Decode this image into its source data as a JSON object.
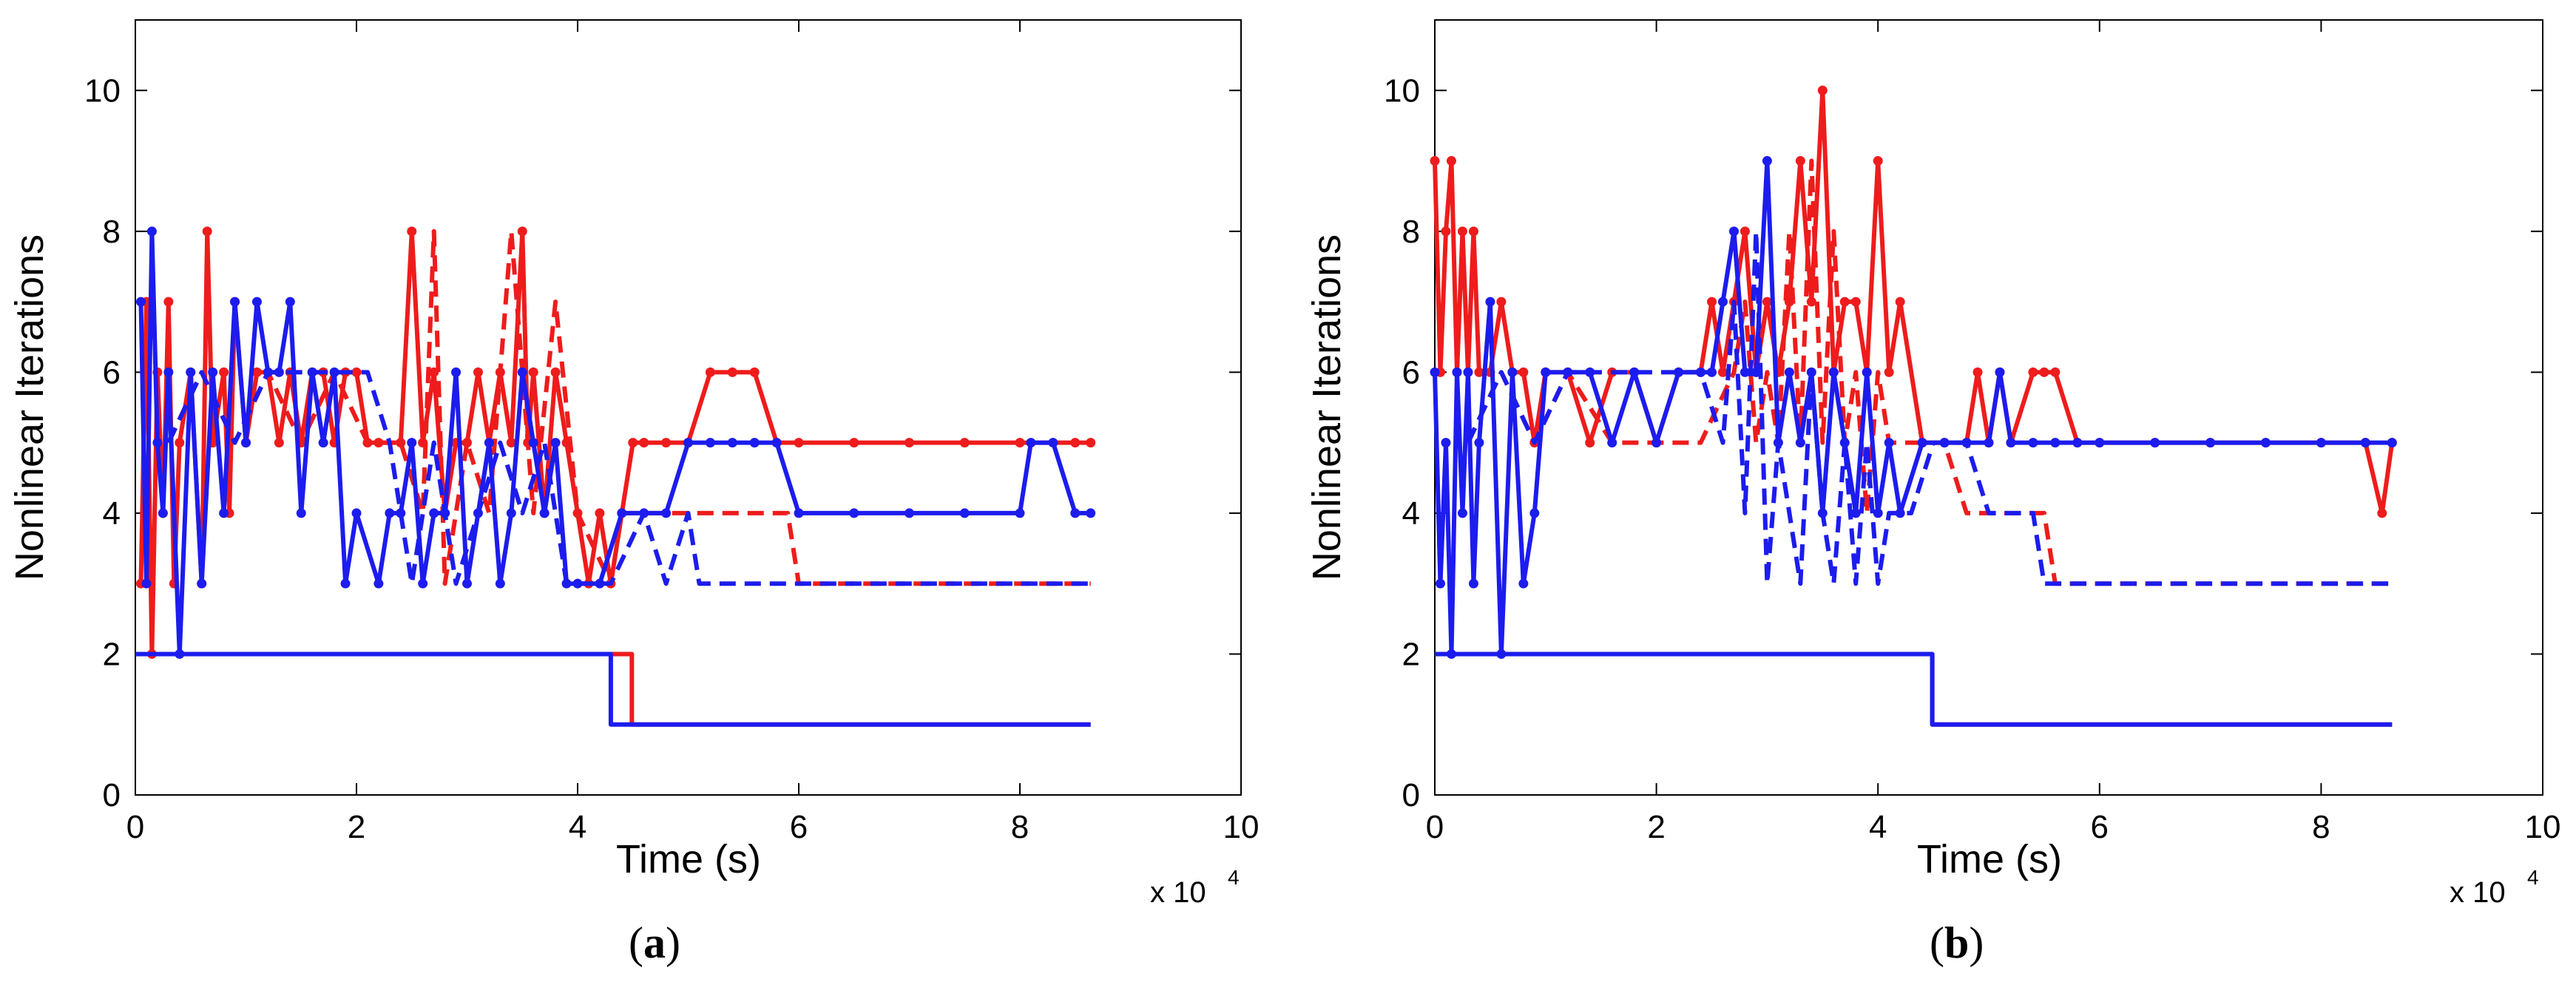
{
  "chart_data": [
    {
      "type": "line",
      "panel_label": "a",
      "xlabel": "Time (s)",
      "ylabel": "Nonlinear Iterations",
      "x_multiplier": "x 10",
      "x_multiplier_exp": "4",
      "xlim": [
        0,
        10
      ],
      "ylim": [
        0,
        11
      ],
      "xticks": [
        0,
        2,
        4,
        6,
        8,
        10
      ],
      "yticks": [
        0,
        2,
        4,
        6,
        8,
        10
      ],
      "series": [
        {
          "name": "red-solid-markers",
          "color": "#ee1c1c",
          "style": "solid",
          "markers": true,
          "x": [
            0.05,
            0.1,
            0.15,
            0.2,
            0.25,
            0.3,
            0.35,
            0.4,
            0.5,
            0.6,
            0.65,
            0.7,
            0.8,
            0.85,
            0.9,
            1.0,
            1.1,
            1.2,
            1.3,
            1.4,
            1.5,
            1.6,
            1.7,
            1.8,
            1.9,
            2.0,
            2.1,
            2.2,
            2.4,
            2.5,
            2.6,
            2.7,
            2.8,
            2.9,
            3.0,
            3.1,
            3.2,
            3.3,
            3.4,
            3.5,
            3.55,
            3.6,
            3.7,
            3.8,
            3.9,
            4.0,
            4.1,
            4.2,
            4.3,
            4.4,
            4.5,
            4.6,
            4.8,
            5.0,
            5.2,
            5.4,
            5.6,
            5.8,
            6.0,
            6.5,
            7.0,
            7.5,
            8.0,
            8.5,
            8.64
          ],
          "y": [
            3,
            7,
            2,
            6,
            4,
            7,
            3,
            5,
            6,
            3,
            8,
            5,
            6,
            4,
            7,
            5,
            6,
            6,
            5,
            6,
            5,
            6,
            6,
            5,
            6,
            6,
            5,
            5,
            5,
            8,
            5,
            6,
            4,
            5,
            5,
            6,
            5,
            6,
            5,
            8,
            5,
            6,
            4,
            6,
            5,
            4,
            3,
            4,
            3,
            4,
            5,
            5,
            5,
            5,
            6,
            6,
            6,
            5,
            5,
            5,
            5,
            5,
            5,
            5,
            5
          ]
        },
        {
          "name": "red-dashed",
          "color": "#ee1c1c",
          "style": "dashed",
          "markers": false,
          "x": [
            0.3,
            0.6,
            0.9,
            1.2,
            1.5,
            1.8,
            2.1,
            2.4,
            2.6,
            2.7,
            2.8,
            2.9,
            3.0,
            3.2,
            3.4,
            3.6,
            3.8,
            4.0,
            4.3,
            4.4,
            4.6,
            4.8,
            5.0,
            5.5,
            5.9,
            6.0,
            7.0,
            8.0,
            8.64
          ],
          "y": [
            5,
            6,
            5,
            6,
            5,
            6,
            5,
            5,
            4,
            8,
            3,
            4,
            5,
            4,
            8,
            4,
            7,
            4,
            3,
            4,
            4,
            4,
            4,
            4,
            4,
            3,
            3,
            3,
            3
          ]
        },
        {
          "name": "red-solid-bottom",
          "color": "#ee1c1c",
          "style": "solid",
          "markers": false,
          "x": [
            0.0,
            1.0,
            2.0,
            3.0,
            4.0,
            4.49,
            4.49,
            8.64
          ],
          "y": [
            2,
            2,
            2,
            2,
            2,
            2,
            1,
            1
          ]
        },
        {
          "name": "blue-solid-markers",
          "color": "#1c1cee",
          "style": "solid",
          "markers": true,
          "x": [
            0.05,
            0.1,
            0.15,
            0.2,
            0.25,
            0.3,
            0.4,
            0.5,
            0.6,
            0.7,
            0.8,
            0.9,
            1.0,
            1.1,
            1.2,
            1.3,
            1.4,
            1.5,
            1.6,
            1.7,
            1.8,
            1.9,
            2.0,
            2.2,
            2.3,
            2.4,
            2.5,
            2.6,
            2.7,
            2.8,
            2.9,
            3.0,
            3.1,
            3.2,
            3.3,
            3.4,
            3.5,
            3.6,
            3.7,
            3.8,
            3.9,
            4.0,
            4.2,
            4.4,
            4.6,
            4.8,
            5.0,
            5.2,
            5.4,
            5.6,
            5.8,
            6.0,
            6.5,
            7.0,
            7.5,
            8.0,
            8.1,
            8.3,
            8.5,
            8.64
          ],
          "y": [
            7,
            3,
            8,
            5,
            4,
            6,
            2,
            6,
            3,
            6,
            4,
            7,
            5,
            7,
            6,
            6,
            7,
            4,
            6,
            5,
            6,
            3,
            4,
            3,
            4,
            4,
            5,
            3,
            4,
            4,
            6,
            3,
            4,
            5,
            3,
            4,
            6,
            5,
            4,
            5,
            3,
            3,
            3,
            4,
            4,
            4,
            5,
            5,
            5,
            5,
            5,
            4,
            4,
            4,
            4,
            4,
            5,
            5,
            4,
            4
          ]
        },
        {
          "name": "blue-dashed",
          "color": "#1c1cee",
          "style": "dashed",
          "markers": false,
          "x": [
            0.3,
            0.6,
            0.9,
            1.2,
            1.6,
            2.0,
            2.1,
            2.3,
            2.5,
            2.7,
            2.9,
            3.1,
            3.3,
            3.5,
            3.7,
            3.9,
            4.1,
            4.3,
            4.6,
            4.8,
            5.0,
            5.1,
            5.5,
            6.0,
            7.0,
            8.0,
            8.64
          ],
          "y": [
            5,
            6,
            5,
            6,
            6,
            6,
            6,
            5,
            3,
            5,
            3,
            4,
            5,
            4,
            5,
            3,
            3,
            3,
            4,
            3,
            4,
            3,
            3,
            3,
            3,
            3,
            3
          ]
        },
        {
          "name": "blue-solid-bottom",
          "color": "#1c1cee",
          "style": "solid",
          "markers": false,
          "x": [
            0.0,
            1.0,
            2.0,
            3.0,
            4.0,
            4.3,
            4.3,
            8.64
          ],
          "y": [
            2,
            2,
            2,
            2,
            2,
            2,
            1,
            1
          ]
        }
      ]
    },
    {
      "type": "line",
      "panel_label": "b",
      "xlabel": "Time (s)",
      "ylabel": "Nonlinear Iterations",
      "x_multiplier": "x 10",
      "x_multiplier_exp": "4",
      "xlim": [
        0,
        10
      ],
      "ylim": [
        0,
        11
      ],
      "xticks": [
        0,
        2,
        4,
        6,
        8,
        10
      ],
      "yticks": [
        0,
        2,
        4,
        6,
        8,
        10
      ],
      "series": [
        {
          "name": "red-solid-markers",
          "color": "#ee1c1c",
          "style": "solid",
          "markers": true,
          "x": [
            0.0,
            0.05,
            0.1,
            0.15,
            0.2,
            0.25,
            0.3,
            0.35,
            0.4,
            0.5,
            0.6,
            0.7,
            0.8,
            0.9,
            1.0,
            1.2,
            1.4,
            1.6,
            1.8,
            2.0,
            2.2,
            2.4,
            2.5,
            2.6,
            2.7,
            2.8,
            2.9,
            3.0,
            3.1,
            3.2,
            3.3,
            3.4,
            3.5,
            3.6,
            3.7,
            3.8,
            3.9,
            4.0,
            4.1,
            4.2,
            4.4,
            4.6,
            4.8,
            4.9,
            5.0,
            5.1,
            5.2,
            5.4,
            5.5,
            5.6,
            5.8,
            6.0,
            6.5,
            7.0,
            7.5,
            8.0,
            8.4,
            8.55,
            8.64
          ],
          "y": [
            9,
            6,
            8,
            9,
            6,
            8,
            6,
            8,
            6,
            6,
            7,
            6,
            6,
            5,
            6,
            6,
            5,
            6,
            6,
            5,
            6,
            6,
            7,
            6,
            7,
            8,
            6,
            7,
            6,
            7,
            9,
            7,
            10,
            6,
            7,
            7,
            6,
            9,
            6,
            7,
            5,
            5,
            5,
            6,
            5,
            6,
            5,
            6,
            6,
            6,
            5,
            5,
            5,
            5,
            5,
            5,
            5,
            4,
            5
          ]
        },
        {
          "name": "red-dashed",
          "color": "#ee1c1c",
          "style": "dashed",
          "markers": false,
          "x": [
            0.3,
            0.6,
            0.9,
            1.2,
            1.6,
            2.0,
            2.4,
            2.7,
            2.8,
            2.9,
            3.0,
            3.1,
            3.2,
            3.3,
            3.4,
            3.5,
            3.6,
            3.7,
            3.8,
            3.9,
            4.0,
            4.1,
            4.3,
            4.4,
            4.6,
            4.8,
            5.0,
            5.5,
            5.6,
            5.8,
            6.0,
            7.0,
            8.0,
            8.64
          ],
          "y": [
            5,
            6,
            5,
            6,
            5,
            5,
            5,
            6,
            7,
            5,
            6,
            5,
            8,
            5,
            9,
            5,
            8,
            5,
            6,
            4,
            6,
            5,
            5,
            5,
            5,
            4,
            4,
            4,
            3,
            3,
            3,
            3,
            3,
            3
          ]
        },
        {
          "name": "red-solid-bottom",
          "color": "#ee1c1c",
          "style": "solid",
          "markers": false,
          "x": [
            0.0,
            1.0,
            2.0,
            3.0,
            4.0,
            4.49,
            4.49,
            8.64
          ],
          "y": [
            2,
            2,
            2,
            2,
            2,
            2,
            1,
            1
          ]
        },
        {
          "name": "blue-solid-markers",
          "color": "#1c1cee",
          "style": "solid",
          "markers": true,
          "x": [
            0.0,
            0.05,
            0.1,
            0.15,
            0.2,
            0.25,
            0.3,
            0.35,
            0.4,
            0.5,
            0.6,
            0.7,
            0.8,
            0.9,
            1.0,
            1.2,
            1.4,
            1.6,
            1.8,
            2.0,
            2.2,
            2.4,
            2.5,
            2.6,
            2.7,
            2.8,
            2.9,
            3.0,
            3.1,
            3.2,
            3.3,
            3.4,
            3.5,
            3.6,
            3.7,
            3.8,
            3.9,
            4.0,
            4.1,
            4.2,
            4.4,
            4.6,
            4.8,
            5.0,
            5.1,
            5.2,
            5.4,
            5.6,
            5.8,
            6.0,
            6.5,
            7.0,
            7.5,
            8.0,
            8.4,
            8.64
          ],
          "y": [
            6,
            3,
            5,
            2,
            6,
            4,
            6,
            3,
            5,
            7,
            2,
            6,
            3,
            4,
            6,
            6,
            6,
            5,
            6,
            5,
            6,
            6,
            6,
            7,
            8,
            6,
            6,
            9,
            5,
            6,
            5,
            6,
            4,
            6,
            5,
            4,
            6,
            4,
            5,
            4,
            5,
            5,
            5,
            5,
            6,
            5,
            5,
            5,
            5,
            5,
            5,
            5,
            5,
            5,
            5,
            5
          ]
        },
        {
          "name": "blue-dashed",
          "color": "#1c1cee",
          "style": "dashed",
          "markers": false,
          "x": [
            0.3,
            0.6,
            0.9,
            1.2,
            1.6,
            2.0,
            2.4,
            2.6,
            2.7,
            2.8,
            2.9,
            3.0,
            3.1,
            3.2,
            3.3,
            3.4,
            3.5,
            3.6,
            3.7,
            3.8,
            3.9,
            4.0,
            4.1,
            4.3,
            4.5,
            4.8,
            5.0,
            5.2,
            5.4,
            5.5,
            5.6,
            6.0,
            7.0,
            8.0,
            8.64
          ],
          "y": [
            5,
            6,
            5,
            6,
            6,
            6,
            6,
            5,
            7,
            4,
            8,
            3,
            5,
            4,
            3,
            6,
            4,
            3,
            5,
            3,
            5,
            3,
            4,
            4,
            5,
            5,
            4,
            4,
            4,
            3,
            3,
            3,
            3,
            3,
            3
          ]
        },
        {
          "name": "blue-solid-bottom",
          "color": "#1c1cee",
          "style": "solid",
          "markers": false,
          "x": [
            0.0,
            1.0,
            2.0,
            3.0,
            4.0,
            4.49,
            4.49,
            8.64
          ],
          "y": [
            2,
            2,
            2,
            2,
            2,
            2,
            1,
            1
          ]
        }
      ]
    }
  ]
}
